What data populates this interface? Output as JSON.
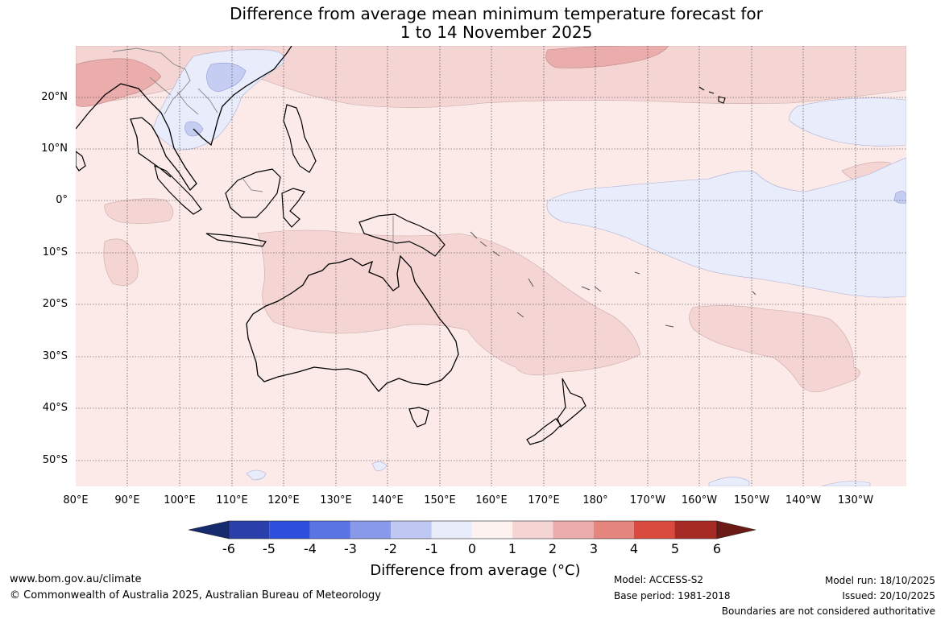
{
  "title": {
    "line1": "Difference from average mean minimum temperature forecast for",
    "line2": "1 to 14 November 2025"
  },
  "map": {
    "lat_labels": [
      "20°N",
      "10°N",
      "0°",
      "10°S",
      "20°S",
      "30°S",
      "40°S",
      "50°S"
    ],
    "lon_labels": [
      "80°E",
      "90°E",
      "100°E",
      "110°E",
      "120°E",
      "130°E",
      "140°E",
      "150°E",
      "160°E",
      "170°E",
      "180°",
      "170°W",
      "160°W",
      "150°W",
      "140°W",
      "130°W"
    ],
    "colors": {
      "background_0_to_1": "#fbeae8",
      "warm_1_to_2": "#f5d5d3",
      "warm_2_to_3": "#eaadab",
      "cool_0_to_minus1": "#e8ecfb",
      "cool_minus1_to_minus2": "#c5cdf2",
      "coastline": "#000000",
      "borders": "#888888"
    }
  },
  "colorbar": {
    "labels": [
      "-6",
      "-5",
      "-4",
      "-3",
      "-2",
      "-1",
      "0",
      "1",
      "2",
      "3",
      "4",
      "5",
      "6"
    ],
    "colors": [
      "#162a6e",
      "#2a3fa9",
      "#2f50de",
      "#5a74e4",
      "#8799e8",
      "#bfc8f2",
      "#e8ecfb",
      "#fdf2f0",
      "#f5d5d3",
      "#eaadab",
      "#e4857e",
      "#d94b3f",
      "#a52a24",
      "#6b1a16"
    ],
    "title": "Difference from average (°C)"
  },
  "footer": {
    "url": "www.bom.gov.au/climate",
    "copyright": "© Commonwealth of Australia 2025, Australian Bureau of Meteorology",
    "model": "Model: ACCESS-S2",
    "base_period": "Base period: 1981-2018",
    "model_run": "Model run: 18/10/2025",
    "issued": "Issued: 20/10/2025",
    "disclaimer": "Boundaries are not considered authoritative"
  }
}
